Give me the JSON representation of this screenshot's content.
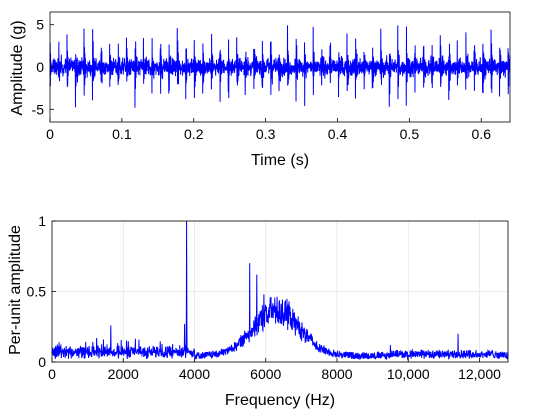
{
  "chart_data": [
    {
      "type": "line",
      "xlabel": "Time (s)",
      "ylabel": "Amplitude (g)",
      "xlim": [
        0,
        0.64
      ],
      "ylim": [
        -6.5,
        6.5
      ],
      "xticks": [
        0,
        0.1,
        0.2,
        0.3,
        0.4,
        0.5,
        0.6
      ],
      "xtick_labels": [
        "0",
        "0.1",
        "0.2",
        "0.3",
        "0.4",
        "0.5",
        "0.6"
      ],
      "yticks": [
        -5,
        0,
        5
      ],
      "ytick_labels": [
        "-5",
        "0",
        "5"
      ],
      "grid": false,
      "series": [
        {
          "color": "#0000ff",
          "description_of_signal": null,
          "impulse_spacing_s": 0.0118,
          "impulse_peak_range": [
            3.5,
            5.7
          ],
          "noise_band": [
            -1.5,
            1.5
          ]
        }
      ]
    },
    {
      "type": "line",
      "xlabel": "Frequency (Hz)",
      "ylabel": "Per-unit amplitude",
      "xlim": [
        0,
        12800
      ],
      "ylim": [
        0,
        1
      ],
      "xticks": [
        0,
        2000,
        4000,
        6000,
        8000,
        10000,
        12000
      ],
      "xtick_labels": [
        "0",
        "2000",
        "4000",
        "6000",
        "8000",
        "10,000",
        "12,000"
      ],
      "yticks": [
        0,
        0.5,
        1
      ],
      "ytick_labels": [
        "0",
        "0.5",
        "1"
      ],
      "grid": true,
      "series": [
        {
          "color": "#0000ff",
          "peaks": [
            {
              "x": 3780,
              "y": 1.0
            },
            {
              "x": 5550,
              "y": 0.7
            },
            {
              "x": 5750,
              "y": 0.62
            },
            {
              "x": 5950,
              "y": 0.48
            },
            {
              "x": 6150,
              "y": 0.46
            },
            {
              "x": 6650,
              "y": 0.43
            },
            {
              "x": 1650,
              "y": 0.26
            },
            {
              "x": 1250,
              "y": 0.17
            },
            {
              "x": 3720,
              "y": 0.27
            },
            {
              "x": 11400,
              "y": 0.2
            },
            {
              "x": 9500,
              "y": 0.12
            },
            {
              "x": 200,
              "y": 0.14
            }
          ],
          "broadband_center": 6300,
          "broadband_width": 1100
        }
      ]
    }
  ]
}
